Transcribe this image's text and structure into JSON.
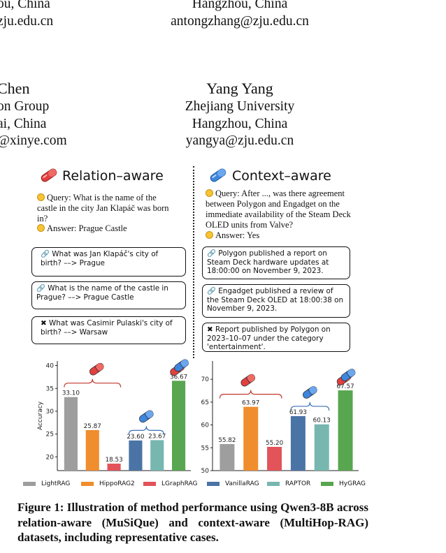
{
  "authors": [
    {
      "lines": [
        "ou, China",
        "zju.edu.cn"
      ]
    },
    {
      "lines": [
        "Hangzhou, China",
        "antongzhang@zju.edu.cn"
      ]
    },
    {
      "name": "Chen",
      "lines": [
        "on Group",
        "ai, China",
        "@xinye.com"
      ]
    },
    {
      "name": "Yang Yang",
      "lines": [
        "Zhejiang University",
        "Hangzhou, China",
        "yangya@zju.edu.cn"
      ]
    }
  ],
  "left_panel": {
    "title": "Relation–aware",
    "query": "Query: What is the name of the castle in the city Jan Klapáč was born in?",
    "answer": "Answer: Prague Castle",
    "boxes": [
      "🔗 What was Jan Klapáč's city of birth? ––> Prague",
      "🔗 What is the name of the castle in Prague? ––> Prague Castle",
      "✖ What was Casimir Pulaski's city of birth? ––> Warsaw"
    ]
  },
  "right_panel": {
    "title": "Context–aware",
    "query": "Query: After ..., was there agreement between Polygon and Engadget on the immediate availability of the Steam Deck OLED units from Valve?",
    "answer": "Answer: Yes",
    "boxes": [
      "🔗 Polygon published a report on Steam Deck hardware updates at 18:00:00 on November 9, 2023.",
      "🔗 Engadget published a review of the Steam Deck OLED at 18:00:38 on November 9, 2023.",
      "✖ Report published by Polygon on 2023–10–07 under the category 'entertainment'."
    ]
  },
  "chart_data": [
    {
      "type": "bar",
      "ylabel": "Accuracy",
      "ylim": [
        17,
        41
      ],
      "yticks": [
        20,
        25,
        30,
        35,
        40
      ],
      "categories": [
        "LightRAG",
        "HippoRAG2",
        "LGraphRAG",
        "VanillaRAG",
        "RAPTOR",
        "HyGRAG"
      ],
      "values": [
        33.1,
        25.87,
        18.53,
        23.6,
        23.67,
        36.67
      ],
      "labels": [
        "33.10",
        "25.87",
        "18.53",
        "23.60",
        "23.67",
        "36.67"
      ],
      "colors": [
        "#9e9e9e",
        "#f08d2e",
        "#e2535a",
        "#4a74a6",
        "#77b7b0",
        "#58a64f"
      ]
    },
    {
      "type": "bar",
      "ylabel": "",
      "ylim": [
        50,
        74
      ],
      "yticks": [
        50,
        55,
        60,
        65,
        70
      ],
      "categories": [
        "LightRAG",
        "HippoRAG2",
        "LGraphRAG",
        "VanillaRAG",
        "RAPTOR",
        "HyGRAG"
      ],
      "values": [
        55.82,
        63.97,
        55.2,
        61.93,
        60.13,
        67.57
      ],
      "labels": [
        "55.82",
        "63.97",
        "55.20",
        "61.93",
        "60.13",
        "67.57"
      ],
      "colors": [
        "#9e9e9e",
        "#f08d2e",
        "#e2535a",
        "#4a74a6",
        "#77b7b0",
        "#58a64f"
      ]
    }
  ],
  "legend": [
    {
      "label": "LightRAG",
      "color": "#9e9e9e"
    },
    {
      "label": "HippoRAG2",
      "color": "#f08d2e"
    },
    {
      "label": "LGraphRAG",
      "color": "#e2535a"
    },
    {
      "label": "VanillaRAG",
      "color": "#4a74a6"
    },
    {
      "label": "RAPTOR",
      "color": "#77b7b0"
    },
    {
      "label": "HyGRAG",
      "color": "#58a64f"
    }
  ],
  "caption": "Figure 1: Illustration of method performance using Qwen3-8B across relation-aware (MuSiQue) and context-aware (MultiHop-RAG) datasets, including representative cases.",
  "colors": {
    "pill_red": "#e2403f",
    "pill_blue": "#3d86e0",
    "brace_red": "#c0392b",
    "brace_blue": "#3b6fb6"
  }
}
